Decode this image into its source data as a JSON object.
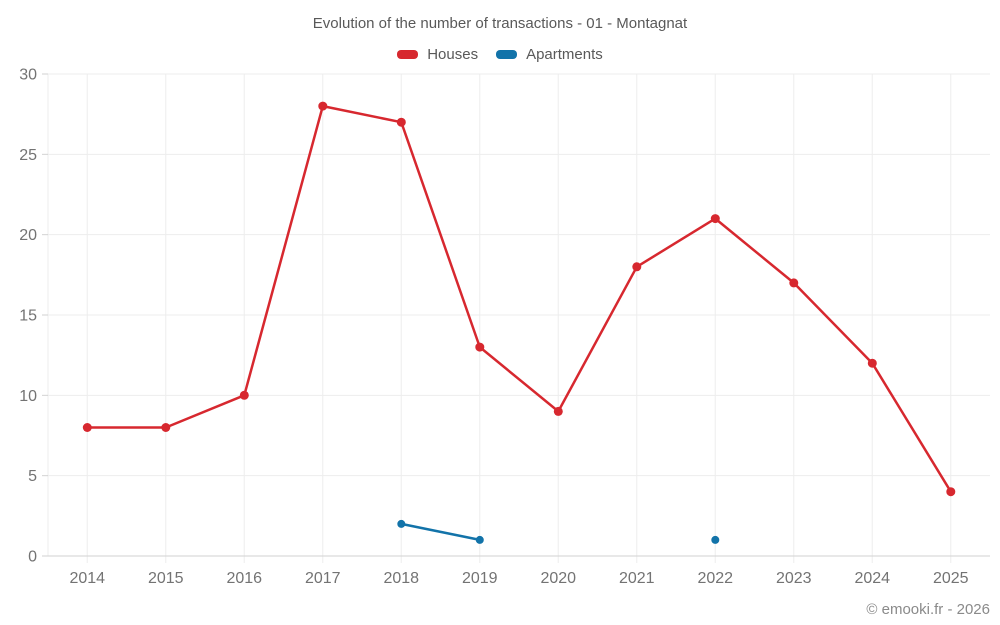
{
  "title": "Evolution of the number of transactions - 01 - Montagnat",
  "footer": "© emooki.fr - 2026",
  "legend": [
    {
      "label": "Houses",
      "color": "#d7282f"
    },
    {
      "label": "Apartments",
      "color": "#1273a9"
    }
  ],
  "colors": {
    "houses": "#d7282f",
    "apartments": "#1273a9",
    "gridline": "#ededed",
    "axis_line": "#d2d2d2",
    "tick_label": "#737373"
  },
  "chart_data": {
    "type": "line",
    "title": "Evolution of the number of transactions - 01 - Montagnat",
    "categories": [
      "2014",
      "2015",
      "2016",
      "2017",
      "2018",
      "2019",
      "2020",
      "2021",
      "2022",
      "2023",
      "2024",
      "2025"
    ],
    "series": [
      {
        "name": "Houses",
        "color": "#d7282f",
        "point_radius": 4.5,
        "values": [
          8,
          8,
          10,
          28,
          27,
          13,
          9,
          18,
          21,
          17,
          12,
          4
        ]
      },
      {
        "name": "Apartments",
        "color": "#1273a9",
        "point_radius": 4,
        "values": [
          null,
          null,
          null,
          null,
          2,
          1,
          null,
          null,
          1,
          null,
          null,
          null
        ]
      }
    ],
    "xlabel": "",
    "ylabel": "",
    "ylim": [
      0,
      30
    ],
    "yticks": [
      0,
      5,
      10,
      15,
      20,
      25,
      30
    ],
    "grid": true,
    "legend_position": "top"
  }
}
